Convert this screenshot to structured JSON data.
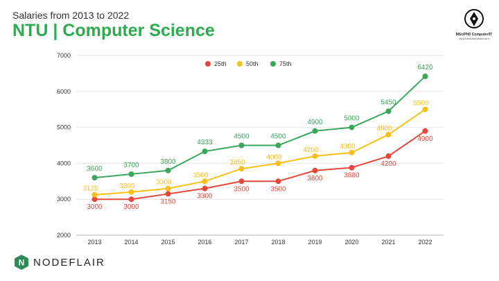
{
  "header": {
    "subtitle": "Salaries from 2013 to 2022",
    "title": "NTU | Computer Science"
  },
  "logos": {
    "top_right_caption": "MSc/PhD Computer/IT",
    "top_right_url": "www.kankunparkasmar.ir",
    "brand_name": "NODEFLAIR",
    "brand_letter": "N"
  },
  "colors": {
    "title": "#2eaa4f",
    "p25": "#e5473b",
    "p50": "#f7bf17",
    "p75": "#3aa65a",
    "grid": "#e4e4e4",
    "brand": "#2e8b57"
  },
  "chart_data": {
    "type": "line",
    "title": "",
    "xlabel": "",
    "ylabel": "",
    "categories": [
      "2013",
      "2014",
      "2015",
      "2016",
      "2017",
      "2018",
      "2019",
      "2020",
      "2021",
      "2022"
    ],
    "ylim": [
      2000,
      7000
    ],
    "yticks": [
      2000,
      3000,
      4000,
      5000,
      6000,
      7000
    ],
    "grid": true,
    "legend_position": "top",
    "series": [
      {
        "name": "25th",
        "color": "#e5473b",
        "values": [
          3000,
          3000,
          3150,
          3300,
          3500,
          3500,
          3800,
          3880,
          4200,
          4900
        ],
        "labels": [
          "3000",
          "3000",
          "3150",
          "3300",
          "3500",
          "3500",
          "3800",
          "3880",
          "4200",
          "4900"
        ]
      },
      {
        "name": "50th",
        "color": "#f7bf17",
        "values": [
          3125,
          3200,
          3300,
          3500,
          3850,
          4000,
          4200,
          4300,
          4800,
          5500
        ],
        "labels": [
          "3125",
          "3200",
          "3300",
          "3500",
          "3850",
          "4000",
          "4200",
          "4300",
          "4800",
          "5500"
        ]
      },
      {
        "name": "75th",
        "color": "#3aa65a",
        "values": [
          3600,
          3700,
          3800,
          4333,
          4500,
          4500,
          4900,
          5000,
          5450,
          6420
        ],
        "labels": [
          "3600",
          "3700",
          "3800",
          "4333",
          "4500",
          "4500",
          "4900",
          "5000",
          "5450",
          "6420"
        ]
      }
    ]
  }
}
